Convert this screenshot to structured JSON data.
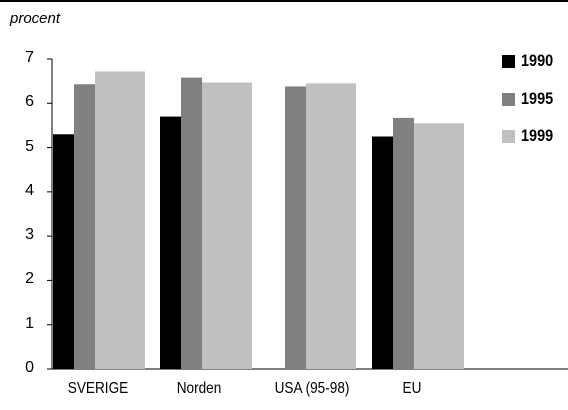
{
  "chart_data": {
    "type": "bar",
    "ylabel": "procent",
    "ylim": [
      0,
      7
    ],
    "yticks": [
      "0",
      "1",
      "2",
      "3",
      "4",
      "5",
      "6",
      "7"
    ],
    "categories": [
      "SVERIGE",
      "Norden",
      "USA (95-98)",
      "EU"
    ],
    "series": [
      {
        "name": "1990",
        "color": "#000000",
        "values": [
          5.3,
          5.7,
          null,
          5.25
        ]
      },
      {
        "name": "1995",
        "color": "#808080",
        "values": [
          6.43,
          6.58,
          6.38,
          5.67
        ]
      },
      {
        "name": "1999",
        "color": "#c0c0c0",
        "values": [
          6.72,
          6.47,
          6.45,
          5.55
        ]
      }
    ],
    "legend_position": "top-right",
    "grid": false
  }
}
